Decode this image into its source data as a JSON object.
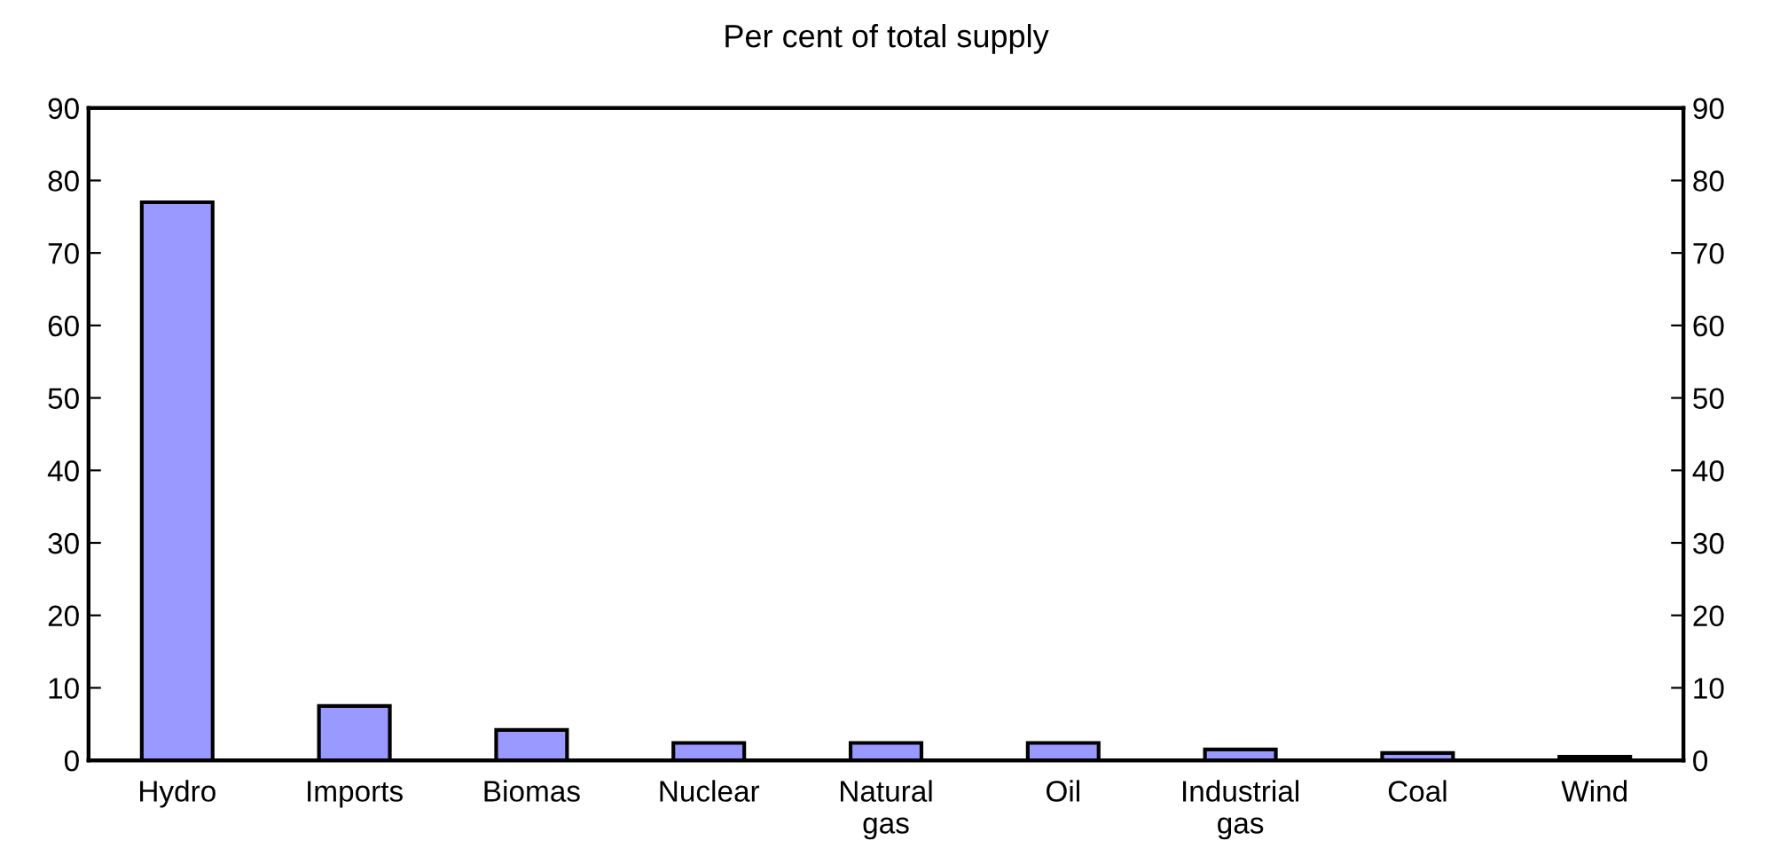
{
  "chart_data": {
    "type": "bar",
    "title": "Per cent of total supply",
    "categories": [
      "Hydro",
      "Imports",
      "Biomas",
      "Nuclear",
      "Natural\ngas",
      "Oil",
      "Industrial\ngas",
      "Coal",
      "Wind"
    ],
    "values": [
      77,
      7.5,
      4.2,
      2.4,
      2.4,
      2.4,
      1.5,
      1.0,
      0.5
    ],
    "color": "#9999ff",
    "ylim": [
      0,
      90
    ],
    "yticks": [
      0,
      10,
      20,
      30,
      40,
      50,
      60,
      70,
      80,
      90
    ],
    "y2lim": [
      0,
      90
    ],
    "y2ticks": [
      0,
      10,
      20,
      30,
      40,
      50,
      60,
      70,
      80,
      90
    ],
    "grid": false,
    "legend": false
  }
}
